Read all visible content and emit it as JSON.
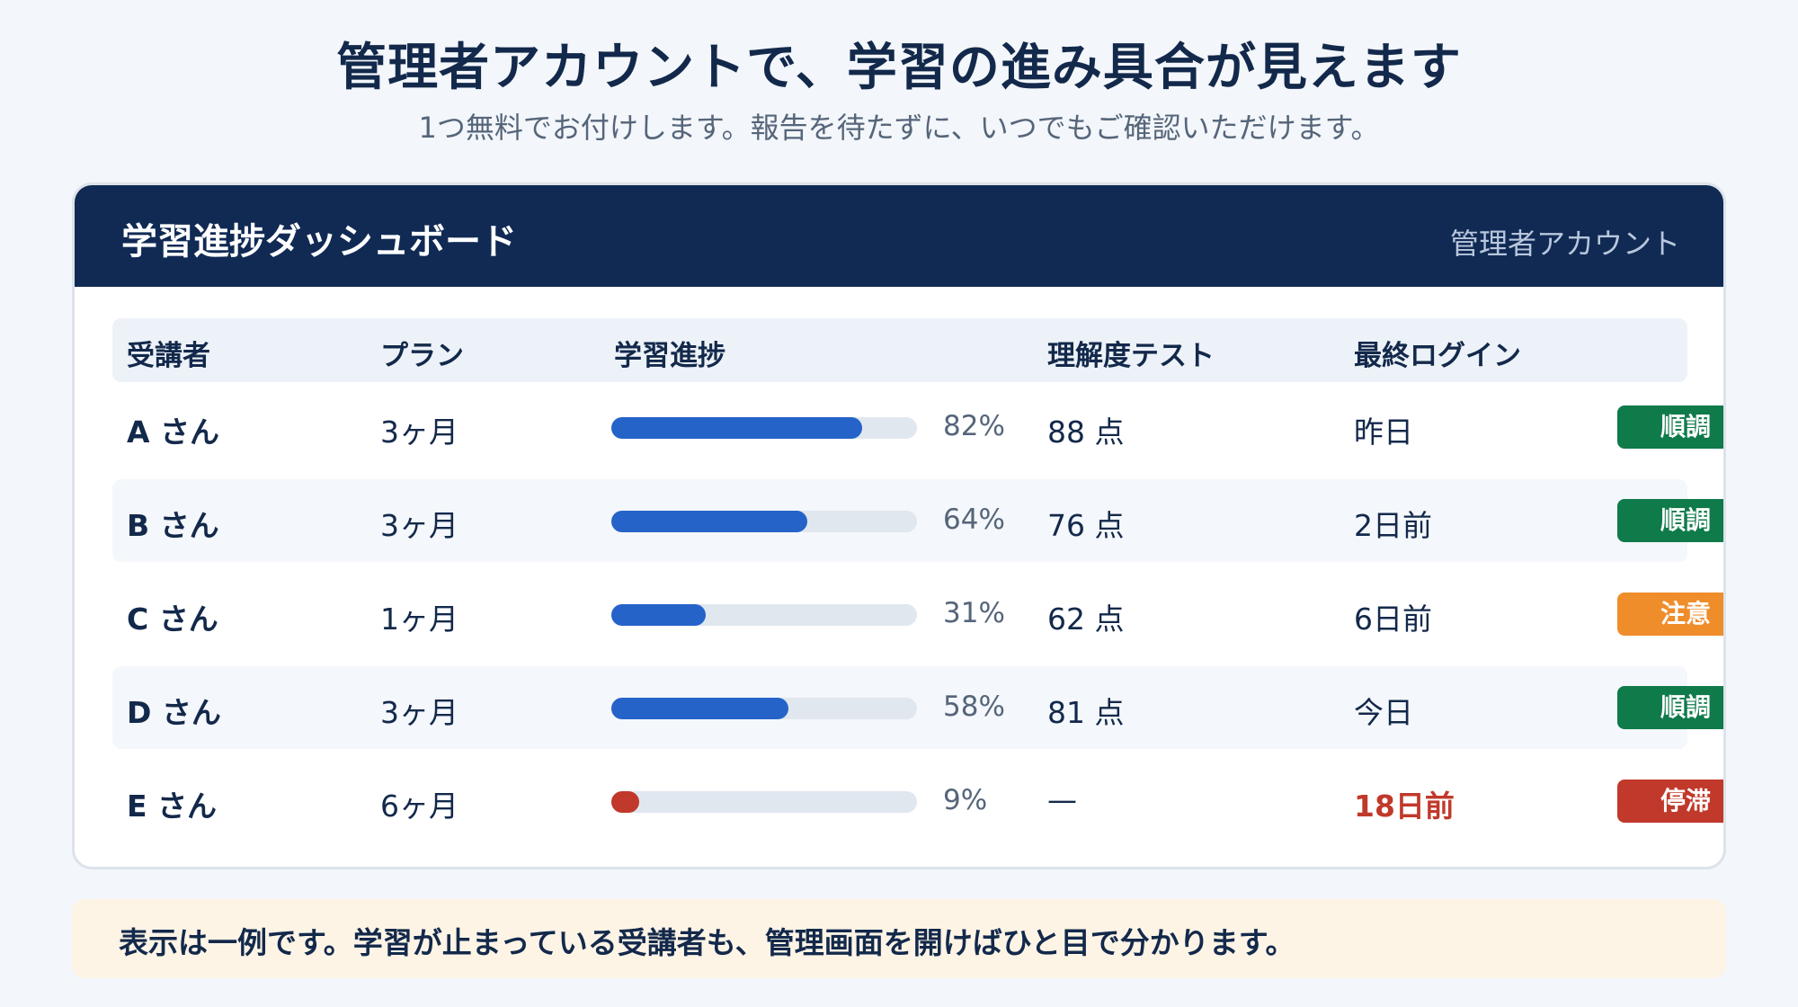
{
  "header": {
    "headline": "管理者アカウントで、学習の進み具合が見えます",
    "subline": "1つ無料でお付けします。報告を待たずに、いつでもご確認いただけます。"
  },
  "dashboard": {
    "title": "学習進捗ダッシュボード",
    "account_label": "管理者アカウント",
    "columns": [
      "受講者",
      "プラン",
      "学習進捗",
      "理解度テスト",
      "最終ログイン"
    ],
    "rows": [
      {
        "name": "A さん",
        "plan": "3ヶ月",
        "progress": 82,
        "progress_label": "82%",
        "score": "88 点",
        "last_login": "昨日",
        "status": "順調",
        "status_color": "#0f7a4a",
        "bar_color": "#2563c9",
        "login_color": "#13294b"
      },
      {
        "name": "B さん",
        "plan": "3ヶ月",
        "progress": 64,
        "progress_label": "64%",
        "score": "76 点",
        "last_login": "2日前",
        "status": "順調",
        "status_color": "#0f7a4a",
        "bar_color": "#2563c9",
        "login_color": "#13294b"
      },
      {
        "name": "C さん",
        "plan": "1ヶ月",
        "progress": 31,
        "progress_label": "31%",
        "score": "62 点",
        "last_login": "6日前",
        "status": "注意",
        "status_color": "#ef8d2b",
        "bar_color": "#2563c9",
        "login_color": "#13294b"
      },
      {
        "name": "D さん",
        "plan": "3ヶ月",
        "progress": 58,
        "progress_label": "58%",
        "score": "81 点",
        "last_login": "今日",
        "status": "順調",
        "status_color": "#0f7a4a",
        "bar_color": "#2563c9",
        "login_color": "#13294b"
      },
      {
        "name": "E さん",
        "plan": "6ヶ月",
        "progress": 9,
        "progress_label": "9%",
        "score": "—",
        "last_login": "18日前",
        "status": "停滞",
        "status_color": "#c0392b",
        "bar_color": "#c0392b",
        "login_color": "#c0392b"
      }
    ]
  },
  "note": {
    "text": "表示は一例です。学習が止まっている受講者も、管理画面を開けばひと目で分かります。"
  }
}
